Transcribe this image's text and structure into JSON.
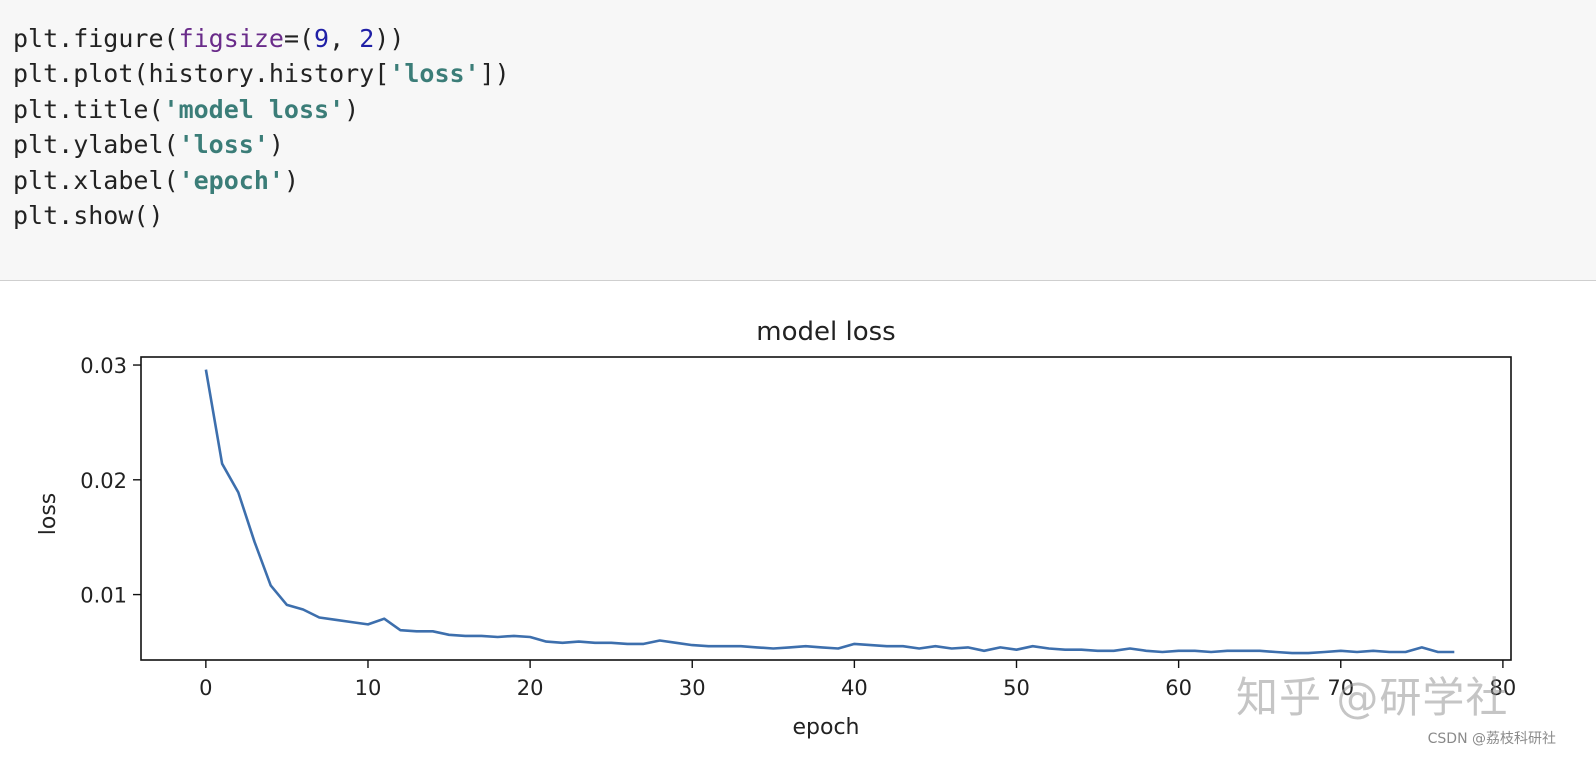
{
  "code": {
    "lines": [
      [
        {
          "t": "plt.figure(",
          "c": ""
        },
        {
          "t": "figsize",
          "c": "kw"
        },
        {
          "t": "=(",
          "c": ""
        },
        {
          "t": "9",
          "c": "num"
        },
        {
          "t": ", ",
          "c": ""
        },
        {
          "t": "2",
          "c": "num"
        },
        {
          "t": "))",
          "c": ""
        }
      ],
      [
        {
          "t": "plt.plot(history.history[",
          "c": ""
        },
        {
          "t": "'loss'",
          "c": "str"
        },
        {
          "t": "])",
          "c": ""
        }
      ],
      [
        {
          "t": "plt.title(",
          "c": ""
        },
        {
          "t": "'model loss'",
          "c": "str"
        },
        {
          "t": ")",
          "c": ""
        }
      ],
      [
        {
          "t": "plt.ylabel(",
          "c": ""
        },
        {
          "t": "'loss'",
          "c": "str"
        },
        {
          "t": ")",
          "c": ""
        }
      ],
      [
        {
          "t": "plt.xlabel(",
          "c": ""
        },
        {
          "t": "'epoch'",
          "c": "str"
        },
        {
          "t": ")",
          "c": ""
        }
      ],
      [
        {
          "t": "plt.show()",
          "c": ""
        }
      ]
    ]
  },
  "chart_data": {
    "type": "line",
    "title": "model loss",
    "xlabel": "epoch",
    "ylabel": "loss",
    "xlim": [
      -4,
      80.5
    ],
    "ylim": [
      0.0043,
      0.0307
    ],
    "xticks": [
      0,
      10,
      20,
      30,
      40,
      50,
      60,
      70,
      80
    ],
    "xtick_labels": [
      "0",
      "10",
      "20",
      "30",
      "40",
      "50",
      "60",
      "70",
      "80"
    ],
    "yticks": [
      0.01,
      0.02,
      0.03
    ],
    "ytick_labels": [
      "0.01",
      "0.02",
      "0.03"
    ],
    "grid": false,
    "line_color": "#3d6fad",
    "series": [
      {
        "x": [
          0,
          1,
          2,
          3,
          4,
          5,
          6,
          7,
          8,
          9,
          10,
          11,
          12,
          13,
          14,
          15,
          16,
          17,
          18,
          19,
          20,
          21,
          22,
          23,
          24,
          25,
          26,
          27,
          28,
          29,
          30,
          31,
          32,
          33,
          34,
          35,
          36,
          37,
          38,
          39,
          40,
          41,
          42,
          43,
          44,
          45,
          46,
          47,
          48,
          49,
          50,
          51,
          52,
          53,
          54,
          55,
          56,
          57,
          58,
          59,
          60,
          61,
          62,
          63,
          64,
          65,
          66,
          67,
          68,
          69,
          70,
          71,
          72,
          73,
          74,
          75,
          76,
          77
        ],
        "values": [
          0.0296,
          0.0214,
          0.0189,
          0.0146,
          0.0108,
          0.0091,
          0.0087,
          0.008,
          0.0078,
          0.0076,
          0.0074,
          0.0079,
          0.0069,
          0.0068,
          0.0068,
          0.0065,
          0.0064,
          0.0064,
          0.0063,
          0.0064,
          0.0063,
          0.0059,
          0.0058,
          0.0059,
          0.0058,
          0.0058,
          0.0057,
          0.0057,
          0.006,
          0.0058,
          0.0056,
          0.0055,
          0.0055,
          0.0055,
          0.0054,
          0.0053,
          0.0054,
          0.0055,
          0.0054,
          0.0053,
          0.0057,
          0.0056,
          0.0055,
          0.0055,
          0.0053,
          0.0055,
          0.0053,
          0.0054,
          0.0051,
          0.0054,
          0.0052,
          0.0055,
          0.0053,
          0.0052,
          0.0052,
          0.0051,
          0.0051,
          0.0053,
          0.0051,
          0.005,
          0.0051,
          0.0051,
          0.005,
          0.0051,
          0.0051,
          0.0051,
          0.005,
          0.0049,
          0.0049,
          0.005,
          0.0051,
          0.005,
          0.0051,
          0.005,
          0.005,
          0.0054,
          0.005,
          0.005
        ]
      }
    ]
  },
  "watermark": {
    "site": "知乎 @研学社",
    "csdn": "CSDN @荔枝科研社"
  }
}
